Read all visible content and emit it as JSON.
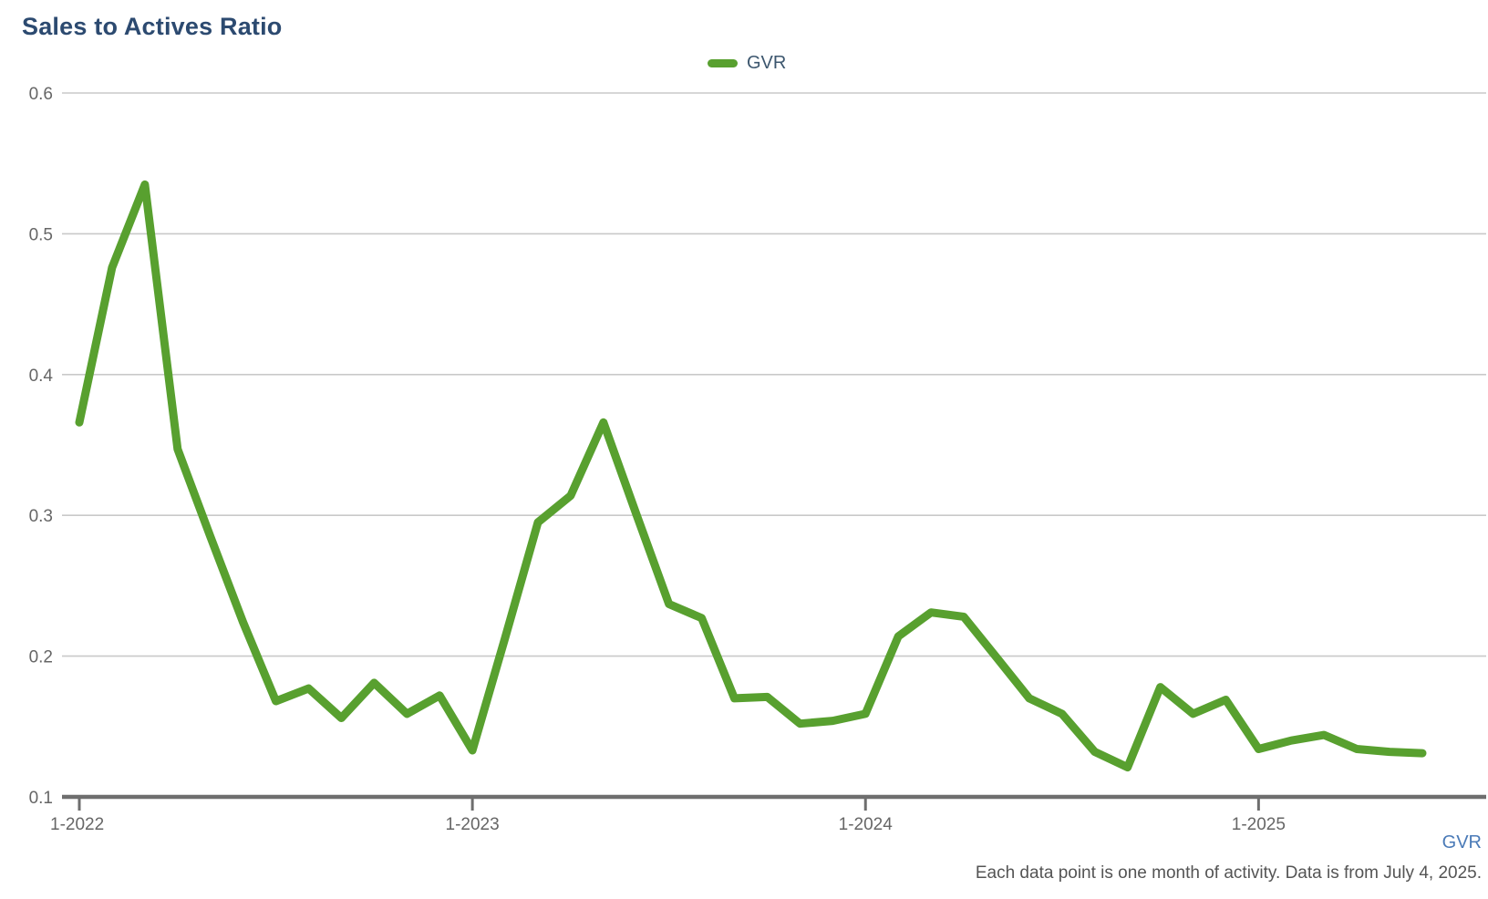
{
  "title": "Sales to Actives Ratio",
  "legend": {
    "label": "GVR"
  },
  "footer": {
    "link_label": "GVR",
    "note": "Each data point is one month of activity. Data is from July 4, 2025."
  },
  "colors": {
    "line": "#58a02f",
    "title": "#2c4a70",
    "gridline": "#c9c9c9",
    "axis_line": "#6e6e6e",
    "tick_label": "#666666",
    "footnote": "#545454",
    "link": "#4a7ab7",
    "background": "#ffffff"
  },
  "chart_data": {
    "type": "line",
    "title": "Sales to Actives Ratio",
    "xlabel": "",
    "ylabel": "",
    "ylim": [
      0.1,
      0.6
    ],
    "y_ticks": [
      0.6,
      0.5,
      0.4,
      0.3,
      0.2,
      0.1
    ],
    "grid": "horizontal",
    "legend_position": "top-center",
    "x_tick_labels": [
      "1-2022",
      "1-2023",
      "1-2024",
      "1-2025"
    ],
    "x": [
      "1-2022",
      "2-2022",
      "3-2022",
      "4-2022",
      "5-2022",
      "6-2022",
      "7-2022",
      "8-2022",
      "9-2022",
      "10-2022",
      "11-2022",
      "12-2022",
      "1-2023",
      "2-2023",
      "3-2023",
      "4-2023",
      "5-2023",
      "6-2023",
      "7-2023",
      "8-2023",
      "9-2023",
      "10-2023",
      "11-2023",
      "12-2023",
      "1-2024",
      "2-2024",
      "3-2024",
      "4-2024",
      "5-2024",
      "6-2024",
      "7-2024",
      "8-2024",
      "9-2024",
      "10-2024",
      "11-2024",
      "12-2024",
      "1-2025",
      "2-2025",
      "3-2025",
      "4-2025",
      "5-2025",
      "6-2025"
    ],
    "series": [
      {
        "name": "GVR",
        "color": "#58a02f",
        "values": [
          0.366,
          0.476,
          0.535,
          0.347,
          0.285,
          0.224,
          0.168,
          0.177,
          0.156,
          0.181,
          0.159,
          0.172,
          0.133,
          0.213,
          0.295,
          0.314,
          0.366,
          0.301,
          0.237,
          0.227,
          0.17,
          0.171,
          0.152,
          0.154,
          0.159,
          0.214,
          0.231,
          0.228,
          0.199,
          0.17,
          0.159,
          0.132,
          0.121,
          0.178,
          0.159,
          0.169,
          0.134,
          0.14,
          0.144,
          0.134,
          0.132,
          0.131
        ]
      }
    ],
    "note": "Each data point is one month of activity. Data is from July 4, 2025."
  }
}
